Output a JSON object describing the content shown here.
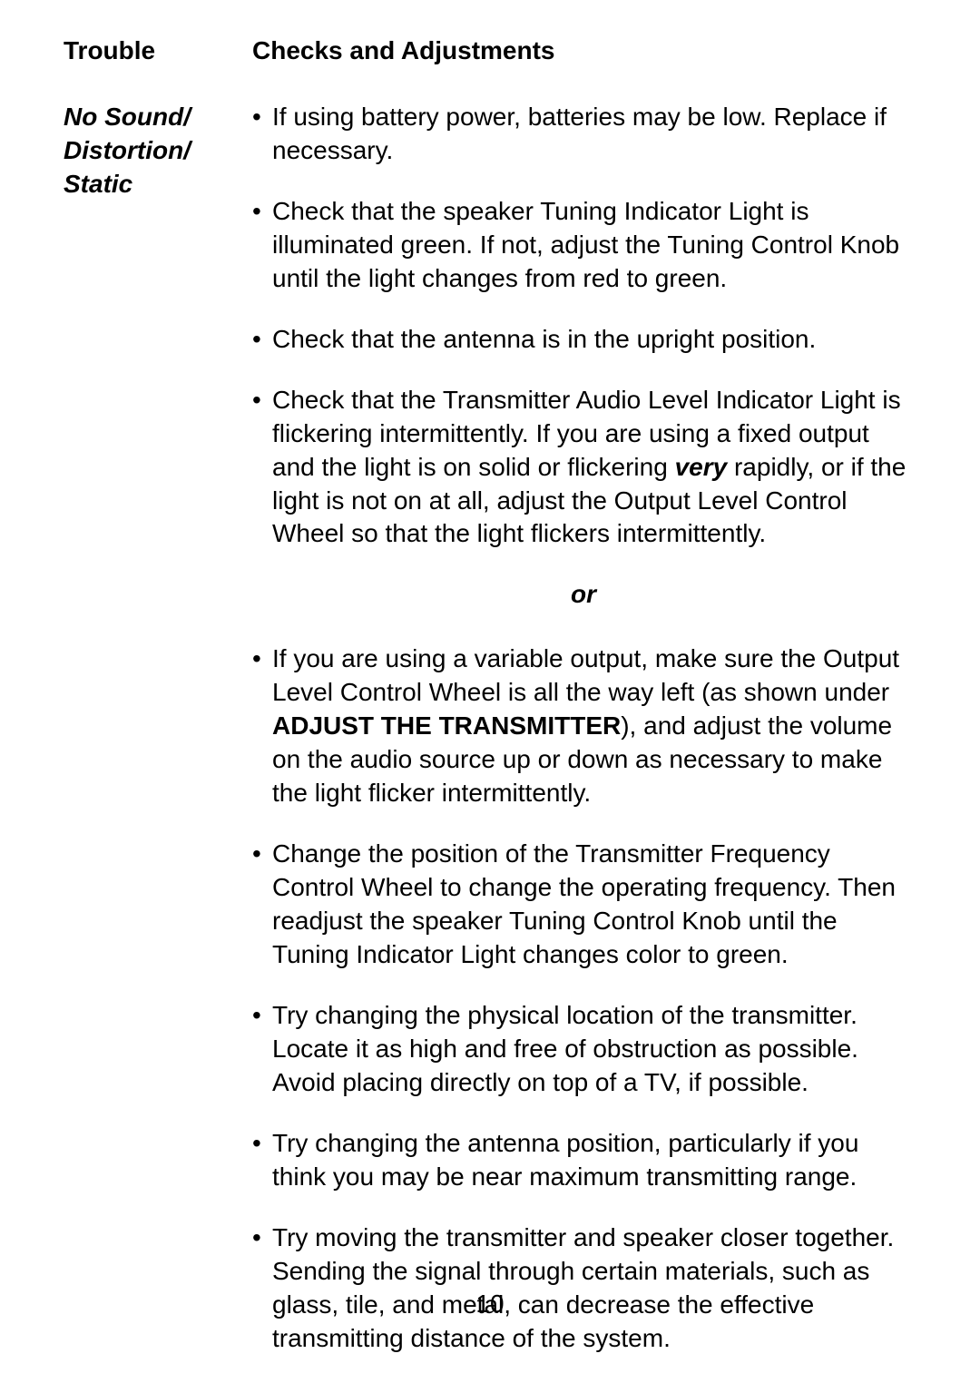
{
  "header": {
    "trouble": "Trouble",
    "checks": "Checks and Adjustments"
  },
  "trouble_label": {
    "line1": "No Sound/",
    "line2": "Distortion/",
    "line3": "Static"
  },
  "bullets": {
    "b1": "If using battery power, batteries may be low. Replace if necessary.",
    "b2": "Check that the speaker Tuning Indicator Light is illuminated green. If not, adjust the Tuning Control Knob until the light changes from red to green.",
    "b3": "Check that the antenna is in the upright position.",
    "b4_pre": "Check that the Transmitter Audio Level Indicator Light is flickering intermittently. If you are using a fixed output and the light is on solid or flickering ",
    "b4_em": "very",
    "b4_post": " rapidly, or if the light is not on at all, adjust the Output Level Control Wheel so that the light flickers intermittently.",
    "b5_pre": "If you are using a variable output, make sure the Output Level Control Wheel is all the way left (as shown under ",
    "b5_strong": "ADJUST THE TRANSMITTER",
    "b5_post": "), and adjust the volume on the audio source up or down as necessary to make the light flicker intermittently.",
    "b6": "Change the position of the Transmitter Frequency Control Wheel to change the operating frequency. Then readjust the speaker Tuning Control Knob until the Tuning Indicator Light changes color to green.",
    "b7": "Try changing the physical location of the transmitter. Locate it as high and free of obstruction as possible. Avoid placing directly on top of a TV, if possible.",
    "b8": "Try changing the antenna position, particularly if you think you may be near maximum transmitting range.",
    "b9": "Try moving the transmitter and speaker closer together. Sending the signal through certain materials, such as glass, tile, and metal, can decrease the effective transmitting distance of the system."
  },
  "or_label": "or",
  "page_number": "10",
  "bullet_char": "•"
}
